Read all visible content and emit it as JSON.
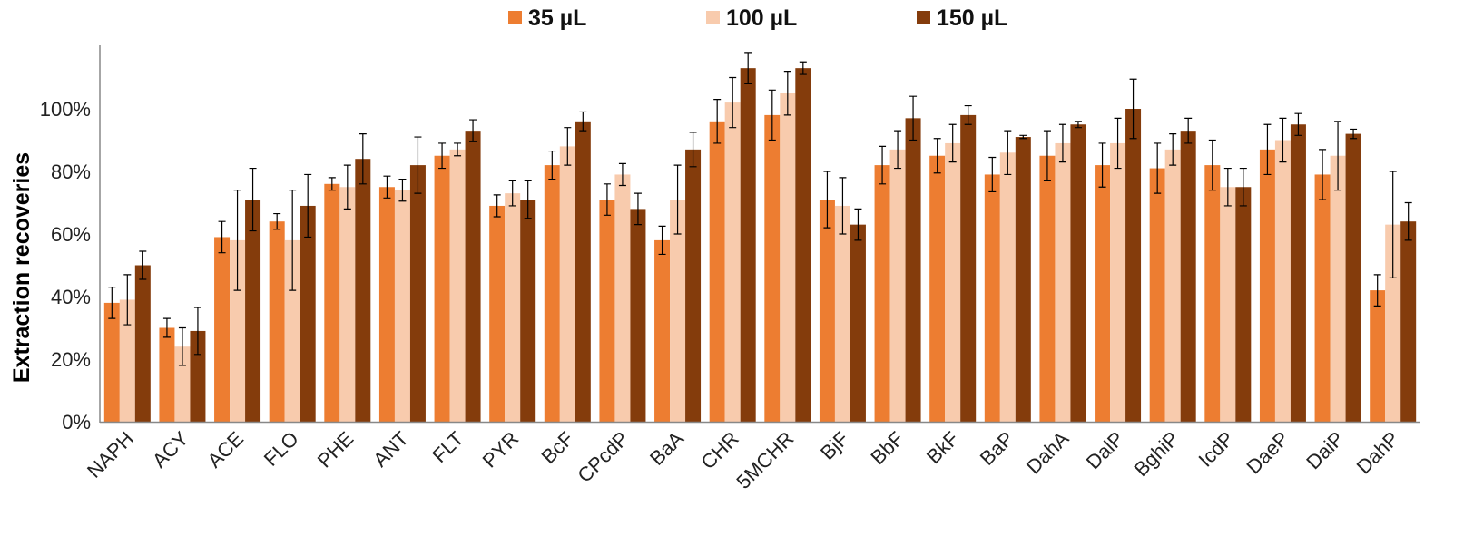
{
  "chart_data": {
    "type": "bar",
    "title": "",
    "xlabel": "",
    "ylabel": "Extraction recoveries",
    "ylim": [
      0,
      120
    ],
    "yticks": [
      "0%",
      "20%",
      "40%",
      "60%",
      "80%",
      "100%"
    ],
    "ytick_values": [
      0,
      20,
      40,
      60,
      80,
      100
    ],
    "legend_position": "top",
    "grid": false,
    "categories": [
      "NAPH",
      "ACY",
      "ACE",
      "FLO",
      "PHE",
      "ANT",
      "FLT",
      "PYR",
      "BcF",
      "CPcdP",
      "BaA",
      "CHR",
      "5MCHR",
      "BjF",
      "BbF",
      "BkF",
      "BaP",
      "DahA",
      "DalP",
      "BghiP",
      "IcdP",
      "DaeP",
      "DaiP",
      "DahP"
    ],
    "series": [
      {
        "name": "35 µL",
        "color": "#ED7D31",
        "values": [
          38,
          30,
          59,
          64,
          76,
          75,
          85,
          69,
          82,
          71,
          58,
          96,
          98,
          71,
          82,
          85,
          79,
          85,
          82,
          81,
          82,
          87,
          79,
          42
        ],
        "errors": [
          5,
          3,
          5,
          2.5,
          2,
          3.5,
          4,
          3.5,
          4.5,
          5,
          4.5,
          7,
          8,
          9,
          6,
          5.5,
          5.5,
          8,
          7,
          8,
          8,
          8,
          8,
          5
        ]
      },
      {
        "name": "100 µL",
        "color": "#F8CBAD",
        "values": [
          39,
          24,
          58,
          58,
          75,
          74,
          87,
          73,
          88,
          79,
          71,
          102,
          105,
          69,
          87,
          89,
          86,
          89,
          89,
          87,
          75,
          90,
          85,
          63
        ],
        "errors": [
          8,
          6,
          16,
          16,
          7,
          3.5,
          2,
          4,
          6,
          3.5,
          11,
          8,
          7,
          9,
          6,
          6,
          7,
          6,
          8,
          5,
          6,
          7,
          11,
          17
        ]
      },
      {
        "name": "150 µL",
        "color": "#843C0C",
        "values": [
          50,
          29,
          71,
          69,
          84,
          82,
          93,
          71,
          96,
          68,
          87,
          113,
          113,
          63,
          97,
          98,
          91,
          95,
          100,
          93,
          75,
          95,
          92,
          64
        ],
        "errors": [
          4.5,
          7.5,
          10,
          10,
          8,
          9,
          3.5,
          6,
          3,
          5,
          5.5,
          5,
          2,
          5,
          7,
          3,
          0.5,
          1,
          9.5,
          4,
          6,
          3.5,
          1.5,
          6
        ]
      }
    ]
  }
}
